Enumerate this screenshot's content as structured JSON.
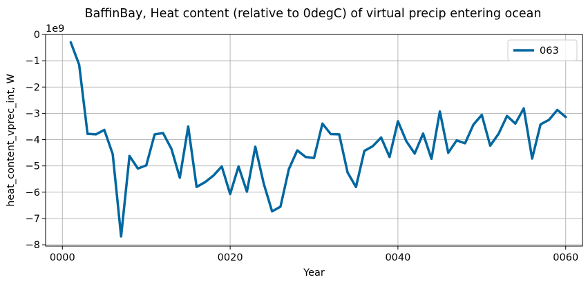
{
  "chart_data": {
    "type": "line",
    "title": "BaffinBay, Heat content (relative to 0degC) of virtual precip entering ocean",
    "xlabel": "Year",
    "ylabel": "heat_content_vprec_int, W",
    "y_offset_label": "1e9",
    "xlim": [
      -2,
      62
    ],
    "ylim": [
      -8.05,
      0
    ],
    "x_ticks": [
      0,
      20,
      40,
      60
    ],
    "x_tick_labels": [
      "0000",
      "0020",
      "0040",
      "0060"
    ],
    "y_ticks": [
      0,
      -1,
      -2,
      -3,
      -4,
      -5,
      -6,
      -7,
      -8
    ],
    "y_tick_labels": [
      "0",
      "−1",
      "−2",
      "−3",
      "−4",
      "−5",
      "−6",
      "−7",
      "−8"
    ],
    "grid": true,
    "legend_position": "top-right",
    "line_color": "#0067a0",
    "series": [
      {
        "name": "063",
        "x": [
          1,
          2,
          3,
          4,
          5,
          6,
          7,
          8,
          9,
          10,
          11,
          12,
          13,
          14,
          15,
          16,
          17,
          18,
          19,
          20,
          21,
          22,
          23,
          24,
          25,
          26,
          27,
          28,
          29,
          30,
          31,
          32,
          33,
          34,
          35,
          36,
          37,
          38,
          39,
          40,
          41,
          42,
          43,
          44,
          45,
          46,
          47,
          48,
          49,
          50,
          51,
          52,
          53,
          54,
          55,
          56,
          57,
          58,
          59,
          60
        ],
        "values": [
          -0.3,
          -1.15,
          -3.78,
          -3.8,
          -3.63,
          -4.55,
          -7.68,
          -4.62,
          -5.1,
          -4.98,
          -3.8,
          -3.75,
          -4.35,
          -5.45,
          -3.5,
          -5.8,
          -5.62,
          -5.37,
          -5.02,
          -6.07,
          -5.02,
          -5.98,
          -4.27,
          -5.67,
          -6.73,
          -6.55,
          -5.12,
          -4.41,
          -4.66,
          -4.7,
          -3.39,
          -3.79,
          -3.8,
          -5.25,
          -5.8,
          -4.43,
          -4.25,
          -3.92,
          -4.66,
          -3.3,
          -4.06,
          -4.53,
          -3.77,
          -4.73,
          -2.93,
          -4.5,
          -4.03,
          -4.14,
          -3.43,
          -3.06,
          -4.23,
          -3.78,
          -3.1,
          -3.39,
          -2.81,
          -4.72,
          -3.42,
          -3.25,
          -2.87,
          -3.14
        ]
      }
    ]
  }
}
